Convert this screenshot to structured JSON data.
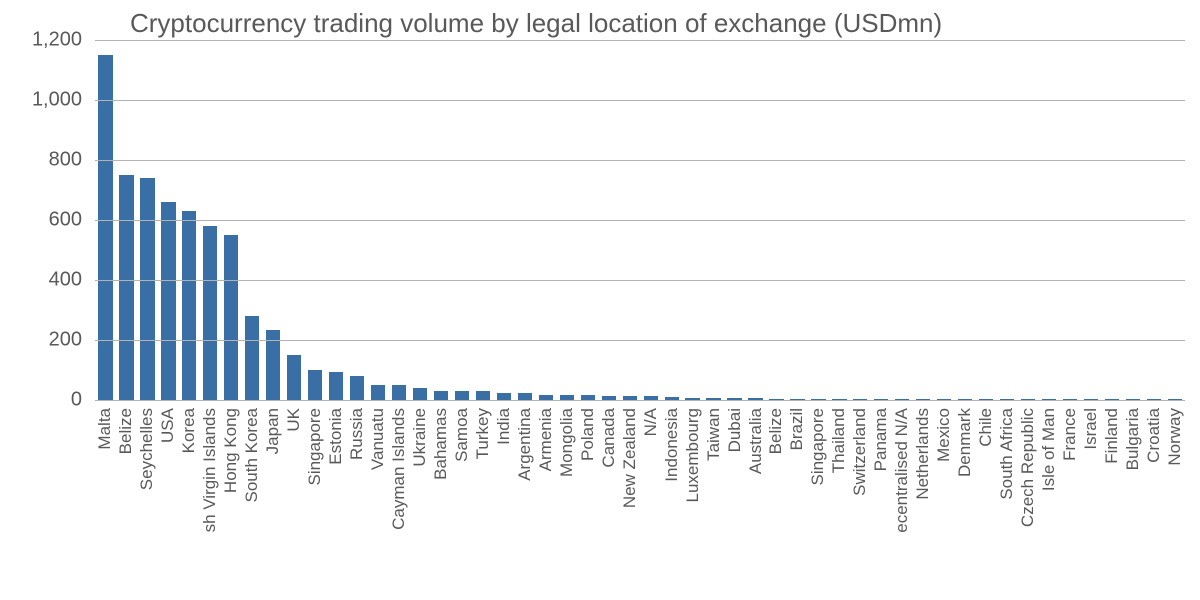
{
  "chart": {
    "type": "bar",
    "title": "Cryptocurrency trading volume by legal location of exchange (USDmn)",
    "title_fontsize": 26,
    "title_color": "#595959",
    "background_color": "#ffffff",
    "bar_color": "#3a6fa6",
    "grid_color": "#b3b3b3",
    "axis_label_color": "#595959",
    "axis_label_fontsize": 20,
    "xlabel_fontsize": 17,
    "bar_width_ratio": 0.68,
    "ylim": [
      0,
      1200
    ],
    "yticks": [
      0,
      200,
      400,
      600,
      800,
      1000,
      1200
    ],
    "ytick_labels": [
      "0",
      "200",
      "400",
      "600",
      "800",
      "1,000",
      "1,200"
    ],
    "categories": [
      "Malta",
      "Belize",
      "Seychelles",
      "USA",
      "Korea",
      "sh Virgin Islands",
      "Hong Kong",
      "South Korea",
      "Japan",
      "UK",
      "Singapore",
      "Estonia",
      "Russia",
      "Vanuatu",
      "Cayman Islands",
      "Ukraine",
      "Bahamas",
      "Samoa",
      "Turkey",
      "India",
      "Argentina",
      "Armenia",
      "Mongolia",
      "Poland",
      "Canada",
      "New Zealand",
      "N/A",
      "Indonesia",
      "Luxembourg",
      "Taiwan",
      "Dubai",
      "Australia",
      "Belize",
      "Brazil",
      "Singapore",
      "Thailand",
      "Switzerland",
      "Panama",
      "ecentralised N/A",
      "Netherlands",
      "Mexico",
      "Denmark",
      "Chile",
      "South Africa",
      "Czech Republic",
      "Isle of Man",
      "France",
      "Israel",
      "Finland",
      "Bulgaria",
      "Croatia",
      "Norway"
    ],
    "values": [
      1150,
      750,
      740,
      660,
      630,
      580,
      550,
      280,
      235,
      150,
      100,
      95,
      80,
      50,
      50,
      40,
      30,
      30,
      30,
      25,
      22,
      18,
      18,
      16,
      14,
      12,
      12,
      10,
      8,
      8,
      7,
      6,
      5,
      5,
      4,
      4,
      4,
      3,
      3,
      3,
      2.5,
      2.5,
      2,
      2,
      2,
      1.5,
      1.5,
      1.5,
      1,
      1,
      1,
      1
    ]
  }
}
